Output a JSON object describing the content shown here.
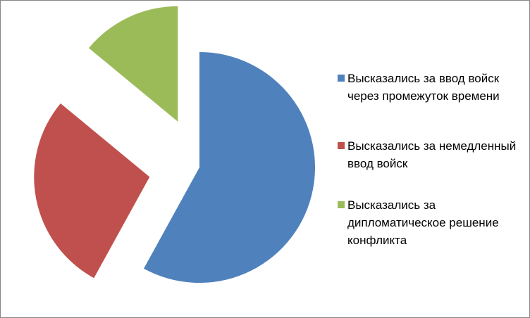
{
  "chart_data": {
    "type": "pie",
    "categories": [
      "Высказались за ввод войск через промежуток времени",
      "Высказались за немедленный ввод войск",
      "Высказались за дипломатическое решение конфликта"
    ],
    "values": [
      58,
      28,
      14
    ],
    "colors": [
      "#4f81bd",
      "#c0504d",
      "#9bbb59"
    ],
    "legend": "right"
  }
}
